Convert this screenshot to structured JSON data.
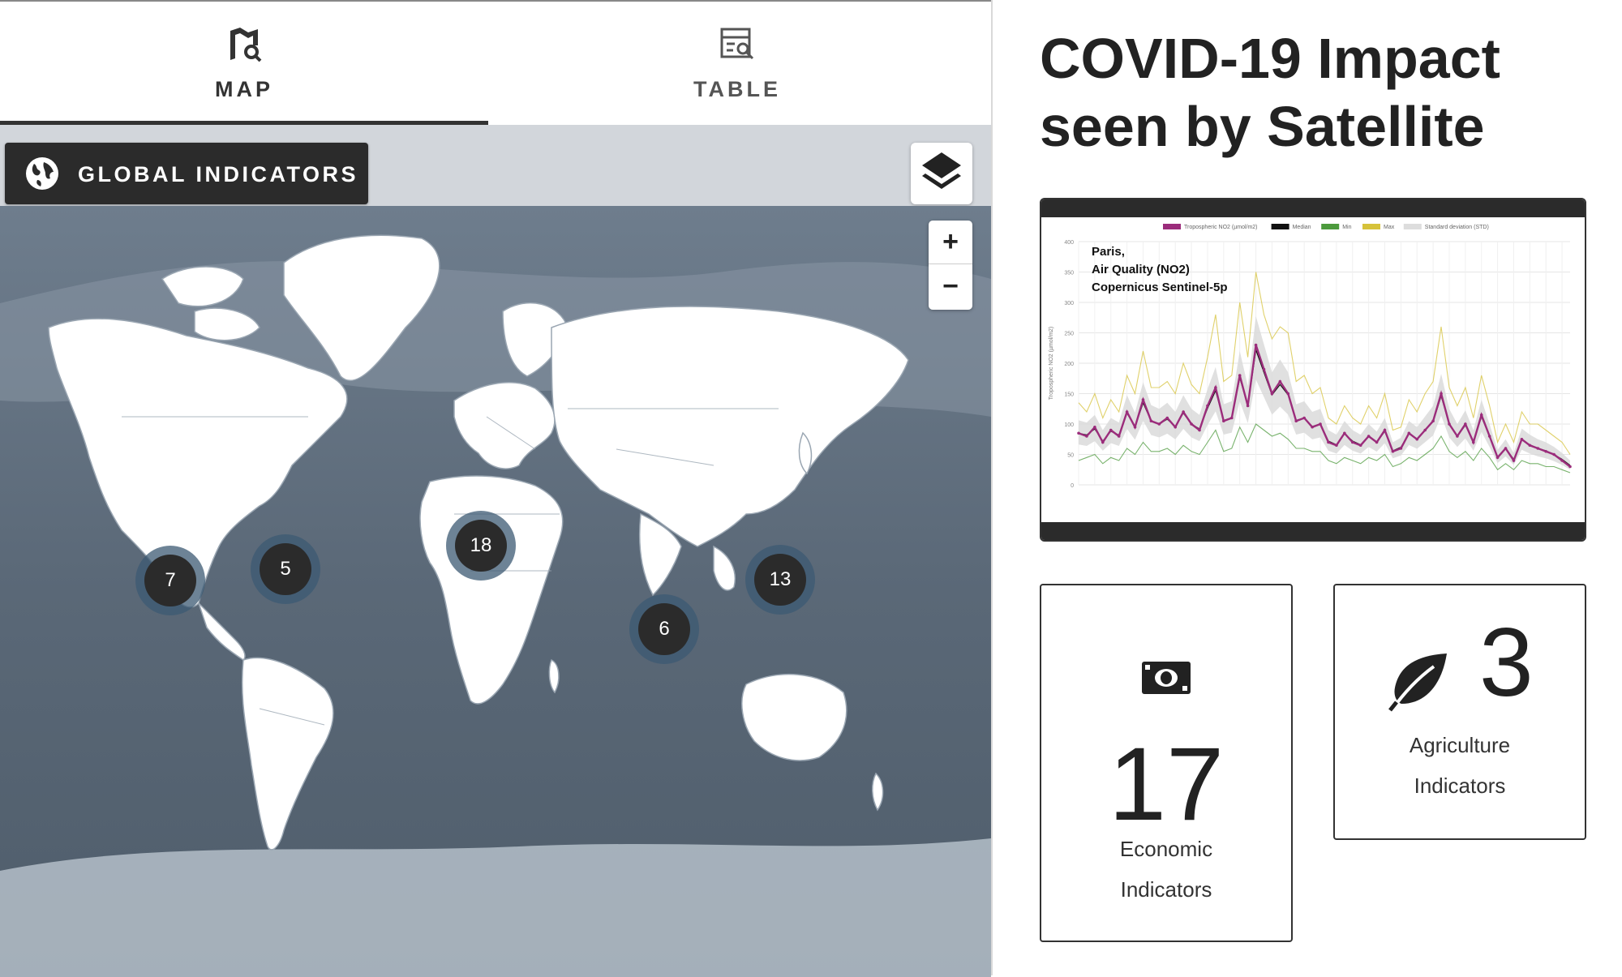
{
  "tabs": [
    {
      "label": "MAP",
      "icon": "map-search-icon",
      "active": true
    },
    {
      "label": "TABLE",
      "icon": "table-search-icon",
      "active": false
    }
  ],
  "toolbar": {
    "global_label": "GLOBAL INDICATORS",
    "global_icon": "globe-icon",
    "layers_icon": "layers-icon"
  },
  "map": {
    "zoom_in_label": "+",
    "zoom_out_label": "−",
    "clusters": [
      {
        "count": "7",
        "region": "west-coast-north-america"
      },
      {
        "count": "5",
        "region": "east-coast-north-america"
      },
      {
        "count": "18",
        "region": "europe"
      },
      {
        "count": "6",
        "region": "india"
      },
      {
        "count": "13",
        "region": "east-asia"
      }
    ]
  },
  "page": {
    "title": "COVID-19 Impact seen by Satellite"
  },
  "chart_card": {
    "annotation_lines": [
      "Paris,",
      "Air Quality (NO2)",
      "Copernicus Sentinel-5p"
    ],
    "legend": [
      {
        "label": "Tropospheric NO2 (µmol/m2)",
        "color": "#9b2c7b"
      },
      {
        "label": "Median",
        "color": "#111111"
      },
      {
        "label": "Min",
        "color": "#4c9a3c"
      },
      {
        "label": "Max",
        "color": "#d6c23a"
      },
      {
        "label": "Standard deviation (STD)",
        "color": "#dddddd"
      }
    ],
    "ylabel": "Tropospheric NO2 (µmol/m2)",
    "y_ticks": [
      "0",
      "50",
      "100",
      "150",
      "200",
      "250",
      "300",
      "350",
      "400"
    ]
  },
  "chart_data": {
    "type": "line",
    "ylim": [
      0,
      400
    ],
    "series": [
      {
        "name": "Tropospheric NO2 (µmol/m2)",
        "values": [
          85,
          80,
          95,
          70,
          90,
          80,
          120,
          95,
          140,
          105,
          100,
          110,
          95,
          120,
          100,
          90,
          130,
          160,
          105,
          110,
          180,
          130,
          230,
          190,
          150,
          170,
          150,
          105,
          110,
          95,
          100,
          70,
          65,
          85,
          70,
          65,
          80,
          70,
          90,
          55,
          60,
          85,
          75,
          90,
          105,
          150,
          100,
          80,
          100,
          70,
          115,
          80,
          45,
          60,
          40,
          75,
          65,
          60,
          55,
          50,
          40,
          30
        ]
      },
      {
        "name": "Median",
        "values": [
          85,
          82,
          92,
          72,
          88,
          82,
          118,
          95,
          135,
          105,
          100,
          108,
          96,
          118,
          100,
          92,
          126,
          155,
          106,
          110,
          176,
          130,
          222,
          185,
          148,
          165,
          148,
          106,
          110,
          96,
          100,
          72,
          66,
          84,
          72,
          66,
          80,
          70,
          88,
          56,
          62,
          84,
          76,
          90,
          104,
          146,
          100,
          80,
          98,
          72,
          112,
          80,
          46,
          60,
          42,
          74,
          66,
          60,
          56,
          50,
          42,
          32
        ]
      },
      {
        "name": "Min",
        "values": [
          40,
          45,
          50,
          35,
          45,
          40,
          60,
          50,
          70,
          55,
          55,
          60,
          50,
          65,
          55,
          50,
          70,
          90,
          55,
          60,
          95,
          70,
          100,
          90,
          80,
          85,
          75,
          60,
          60,
          55,
          55,
          40,
          35,
          45,
          40,
          35,
          45,
          40,
          50,
          30,
          35,
          45,
          40,
          50,
          60,
          80,
          55,
          45,
          55,
          40,
          60,
          45,
          25,
          35,
          25,
          40,
          35,
          35,
          30,
          30,
          25,
          20
        ]
      },
      {
        "name": "Max",
        "values": [
          135,
          120,
          150,
          110,
          140,
          120,
          180,
          150,
          220,
          160,
          160,
          170,
          150,
          200,
          165,
          150,
          210,
          280,
          170,
          180,
          300,
          210,
          350,
          280,
          240,
          260,
          250,
          170,
          180,
          150,
          160,
          110,
          100,
          130,
          110,
          100,
          130,
          110,
          150,
          90,
          95,
          140,
          120,
          150,
          170,
          260,
          160,
          130,
          160,
          110,
          180,
          130,
          70,
          100,
          70,
          120,
          100,
          100,
          90,
          80,
          70,
          50
        ]
      }
    ]
  },
  "indicators": {
    "economic": {
      "count": "17",
      "label_line1": "Economic",
      "label_line2": "Indicators",
      "icon": "money-icon"
    },
    "agriculture": {
      "count": "3",
      "label_line1": "Agriculture",
      "label_line2": "Indicators",
      "icon": "leaf-icon"
    }
  }
}
